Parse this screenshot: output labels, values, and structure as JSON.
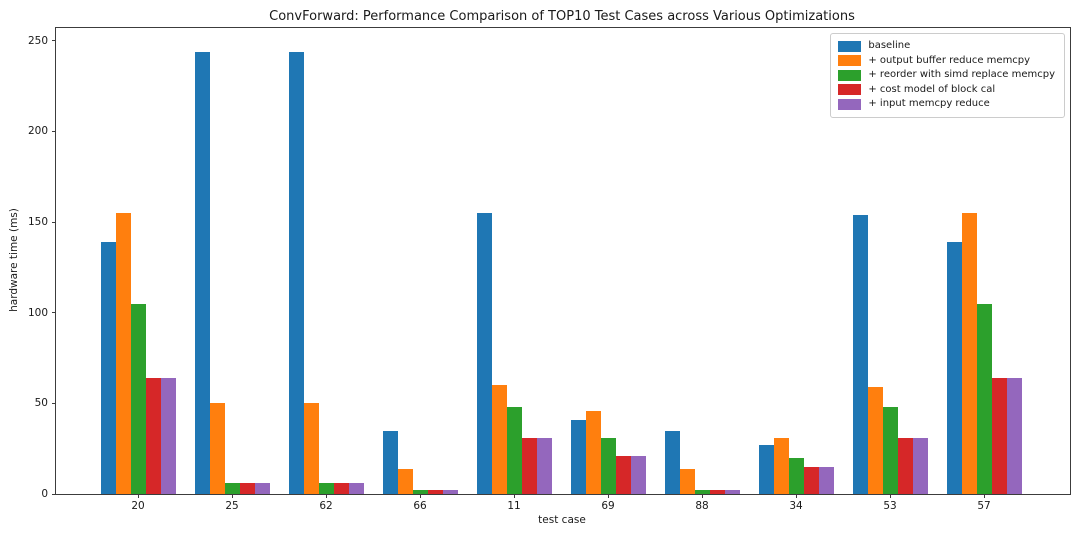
{
  "chart_data": {
    "type": "bar",
    "title": "ConvForward: Performance Comparison of TOP10 Test Cases across Various Optimizations",
    "xlabel": "test case",
    "ylabel": "hardware time (ms)",
    "categories": [
      "20",
      "25",
      "62",
      "66",
      "11",
      "69",
      "88",
      "34",
      "53",
      "57"
    ],
    "series": [
      {
        "name": "baseline",
        "color": "#1f77b4",
        "values": [
          139,
          244,
          244,
          35,
          155,
          41,
          35,
          27,
          154,
          139
        ]
      },
      {
        "name": "+ output buffer reduce memcpy",
        "color": "#ff7f0e",
        "values": [
          155,
          50,
          50,
          14,
          60,
          46,
          14,
          31,
          59,
          155
        ]
      },
      {
        "name": "+ reorder with simd replace memcpy",
        "color": "#2ca02c",
        "values": [
          105,
          6,
          6,
          2,
          48,
          31,
          2,
          20,
          48,
          105
        ]
      },
      {
        "name": "+ cost model of block cal",
        "color": "#d62728",
        "values": [
          64,
          6,
          6,
          2,
          31,
          21,
          2,
          15,
          31,
          64
        ]
      },
      {
        "name": "+ input memcpy reduce",
        "color": "#9467bd",
        "values": [
          64,
          6,
          6,
          2,
          31,
          21,
          2,
          15,
          31,
          64
        ]
      }
    ],
    "yticks": [
      0,
      50,
      100,
      150,
      200,
      250
    ],
    "ylim": [
      0,
      257
    ],
    "legend_position": "upper right",
    "grid": false
  }
}
